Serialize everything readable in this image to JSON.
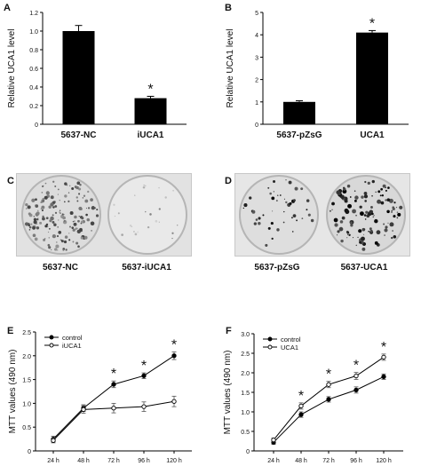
{
  "panels": {
    "A": "A",
    "B": "B",
    "C": "C",
    "D": "D",
    "E": "E",
    "F": "F"
  },
  "chart_data": [
    {
      "id": "A",
      "type": "bar",
      "categories": [
        "5637-NC",
        "iUCA1"
      ],
      "values": [
        1.0,
        0.28
      ],
      "errors": [
        0.06,
        0.02
      ],
      "significance": [
        "",
        "*"
      ],
      "ylabel": "Relative UCA1 level",
      "ylim": [
        0,
        1.2
      ],
      "yticks": [
        "0",
        "0.2",
        "0.4",
        "0.6",
        "0.8",
        "1.0",
        "1.2"
      ],
      "ytick_values": [
        0,
        0.2,
        0.4,
        0.6,
        0.8,
        1.0,
        1.2
      ],
      "color": "#000000"
    },
    {
      "id": "B",
      "type": "bar",
      "categories": [
        "5637-pZsG",
        "UCA1"
      ],
      "values": [
        1.0,
        4.1
      ],
      "errors": [
        0.05,
        0.09
      ],
      "significance": [
        "",
        "*"
      ],
      "ylabel": "Relative UCA1 level",
      "ylim": [
        0,
        5
      ],
      "yticks": [
        "0",
        "1",
        "2",
        "3",
        "4",
        "5"
      ],
      "ytick_values": [
        0,
        1,
        2,
        3,
        4,
        5
      ],
      "color": "#000000"
    },
    {
      "id": "E",
      "type": "line",
      "x": [
        "24 h",
        "48 h",
        "72 h",
        "96 h",
        "120 h"
      ],
      "ylabel": "MTT values (490 nm)",
      "ylim": [
        0,
        2.5
      ],
      "yticks": [
        "0",
        "0.5",
        "1.0",
        "1.5",
        "2.0",
        "2.5"
      ],
      "ytick_values": [
        0,
        0.5,
        1.0,
        1.5,
        2.0,
        2.5
      ],
      "series": [
        {
          "name": "control",
          "values": [
            0.25,
            0.9,
            1.4,
            1.58,
            2.0
          ],
          "errors": [
            0.06,
            0.07,
            0.07,
            0.06,
            0.08
          ],
          "marker": "filled"
        },
        {
          "name": "iUCA1",
          "values": [
            0.22,
            0.87,
            0.9,
            0.93,
            1.04
          ],
          "errors": [
            0.05,
            0.08,
            0.1,
            0.1,
            0.11
          ],
          "marker": "open"
        }
      ],
      "significance": [
        "",
        "",
        "*",
        "*",
        "*"
      ],
      "legend": "top-left"
    },
    {
      "id": "F",
      "type": "line",
      "x": [
        "24 h",
        "48 h",
        "72 h",
        "96 h",
        "120 h"
      ],
      "ylabel": "MTT values (490 nm)",
      "ylim": [
        0,
        3.0
      ],
      "yticks": [
        "0",
        "0.5",
        "1.0",
        "1.5",
        "2.0",
        "2.5",
        "3.0"
      ],
      "ytick_values": [
        0,
        0.5,
        1.0,
        1.5,
        2.0,
        2.5,
        3.0
      ],
      "series": [
        {
          "name": "control",
          "values": [
            0.22,
            0.93,
            1.32,
            1.56,
            1.9
          ],
          "errors": [
            0.05,
            0.07,
            0.07,
            0.08,
            0.07
          ],
          "marker": "filled"
        },
        {
          "name": "UCA1",
          "values": [
            0.28,
            1.15,
            1.7,
            1.92,
            2.4
          ],
          "errors": [
            0.05,
            0.08,
            0.08,
            0.09,
            0.08
          ],
          "marker": "open"
        }
      ],
      "significance": [
        "",
        "*",
        "*",
        "*",
        "*"
      ],
      "legend": "top-left"
    }
  ],
  "dishes": {
    "C": {
      "labels": [
        "5637-NC",
        "5637-iUCA1"
      ]
    },
    "D": {
      "labels": [
        "5637-pZsG",
        "5637-UCA1"
      ]
    }
  }
}
